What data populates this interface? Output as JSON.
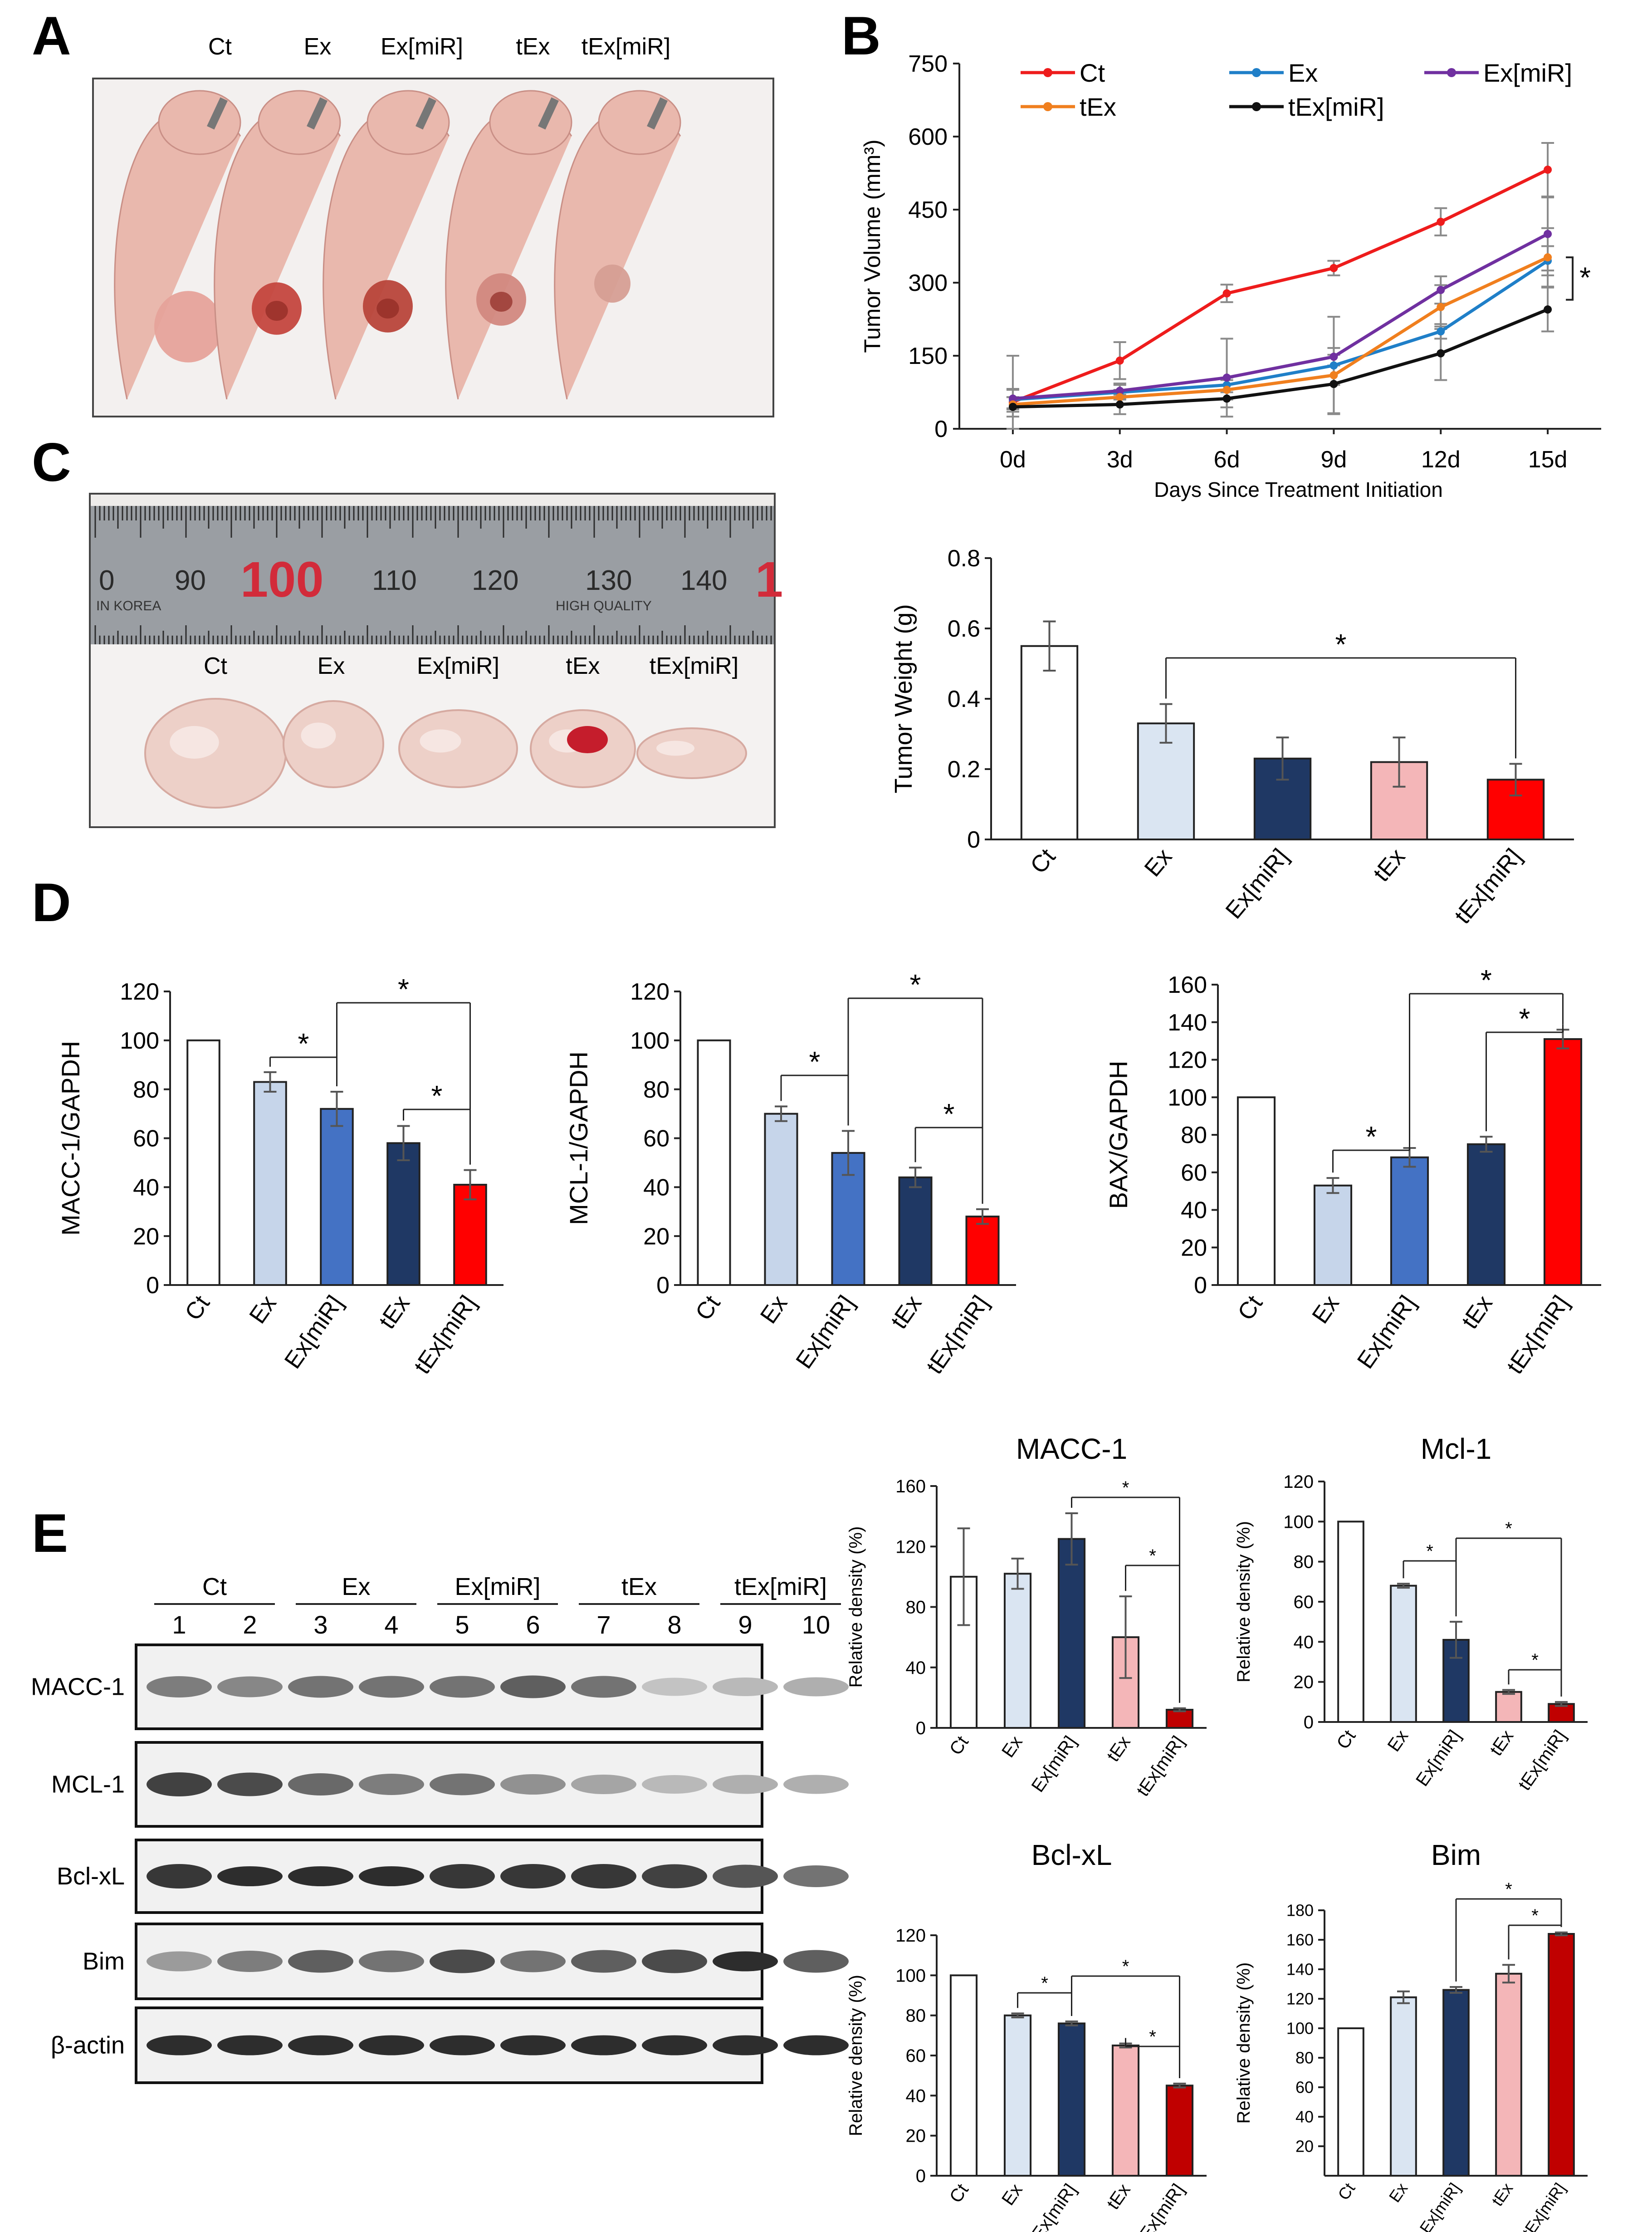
{
  "panel_letters": {
    "a": "A",
    "b": "B",
    "c": "C",
    "d": "D",
    "e": "E"
  },
  "panel_a": {
    "labels": [
      "Ct",
      "Ex",
      "Ex[miR]",
      "tEx",
      "tEx[miR]"
    ],
    "skin_color": "#e9b8ad",
    "tumor_colors": [
      "#e6a29a",
      "#c4463e",
      "#b8453a",
      "#d2887f",
      "#d69e93"
    ]
  },
  "panel_c": {
    "ruler_numbers": [
      "0",
      "90",
      "100",
      "110",
      "120",
      "130",
      "140",
      "1"
    ],
    "ruler_texts": [
      "IN KOREA",
      "HIGH QUALITY"
    ],
    "labels": [
      "Ct",
      "Ex",
      "Ex[miR]",
      "tEx",
      "tEx[miR]"
    ],
    "tumor_color": "#edd0c8"
  },
  "panel_d_labels": {
    "significance": "*"
  },
  "chart_data": [
    {
      "id": "B",
      "type": "line",
      "title": "",
      "xlabel": "Days Since Treatment Initiation",
      "ylabel": "Tumor Volume (mm³)",
      "categories": [
        "0d",
        "3d",
        "6d",
        "9d",
        "12d",
        "15d"
      ],
      "yticks": [
        "0",
        "150",
        "300",
        "450",
        "600",
        "750"
      ],
      "ylim": [
        0,
        750
      ],
      "series": [
        {
          "name": "Ct",
          "color": "#ee1c1c",
          "values": [
            55,
            140,
            278,
            330,
            425,
            532
          ],
          "err": [
            95,
            38,
            18,
            15,
            28,
            55
          ]
        },
        {
          "name": "Ex",
          "color": "#1f7fc8",
          "values": [
            60,
            75,
            90,
            130,
            200,
            345
          ],
          "err": [
            20,
            15,
            15,
            100,
            15,
            30
          ]
        },
        {
          "name": "Ex[miR]",
          "color": "#7030a0",
          "values": [
            62,
            78,
            105,
            148,
            285,
            400
          ],
          "err": [
            20,
            15,
            80,
            18,
            28,
            75
          ]
        },
        {
          "name": "tEx",
          "color": "#f07f1e",
          "values": [
            50,
            65,
            80,
            110,
            250,
            352
          ],
          "err": [
            15,
            15,
            20,
            20,
            45,
            60
          ]
        },
        {
          "name": "tEx[miR]",
          "color": "#111111",
          "values": [
            45,
            50,
            62,
            92,
            155,
            245
          ],
          "err": [
            20,
            20,
            18,
            60,
            55,
            45
          ]
        }
      ],
      "significance": "*"
    },
    {
      "id": "C",
      "type": "bar",
      "ylabel": "Tumor Weight (g)",
      "categories": [
        "Ct",
        "Ex",
        "Ex[miR]",
        "tEx",
        "tEx[miR]"
      ],
      "values": [
        0.55,
        0.33,
        0.23,
        0.22,
        0.17
      ],
      "errors": [
        0.07,
        0.055,
        0.06,
        0.07,
        0.045
      ],
      "colors": [
        "#ffffff",
        "#dae5f2",
        "#1f3864",
        "#f4b6b8",
        "#ff0000"
      ],
      "yticks": [
        "0",
        "0.2",
        "0.4",
        "0.6",
        "0.8"
      ],
      "ylim": [
        0,
        0.8
      ],
      "significance": [
        {
          "from": 1,
          "to": 4,
          "label": "*"
        }
      ]
    },
    {
      "id": "D1",
      "type": "bar",
      "ylabel": "MACC-1/GAPDH",
      "categories": [
        "Ct",
        "Ex",
        "Ex[miR]",
        "tEx",
        "tEx[miR]"
      ],
      "values": [
        100,
        83,
        72,
        58,
        41
      ],
      "errors": [
        0,
        4,
        7,
        7,
        6
      ],
      "colors": [
        "#ffffff",
        "#c6d5ea",
        "#4472c4",
        "#1f3864",
        "#ff0000"
      ],
      "yticks": [
        "0",
        "20",
        "40",
        "60",
        "80",
        "100",
        "120"
      ],
      "ylim": [
        0,
        120
      ],
      "significance": [
        {
          "from": 1,
          "to": 2,
          "label": "*"
        },
        {
          "from": 2,
          "to": 4,
          "label": "*"
        },
        {
          "from": 3,
          "to": 4,
          "label": "*"
        }
      ]
    },
    {
      "id": "D2",
      "type": "bar",
      "ylabel": "MCL-1/GAPDH",
      "categories": [
        "Ct",
        "Ex",
        "Ex[miR]",
        "tEx",
        "tEx[miR]"
      ],
      "values": [
        100,
        70,
        54,
        44,
        28
      ],
      "errors": [
        0,
        3,
        9,
        4,
        3
      ],
      "colors": [
        "#ffffff",
        "#c6d5ea",
        "#4472c4",
        "#1f3864",
        "#ff0000"
      ],
      "yticks": [
        "0",
        "20",
        "40",
        "60",
        "80",
        "100",
        "120"
      ],
      "ylim": [
        0,
        120
      ],
      "significance": [
        {
          "from": 1,
          "to": 2,
          "label": "*"
        },
        {
          "from": 2,
          "to": 4,
          "label": "*"
        },
        {
          "from": 3,
          "to": 4,
          "label": "*"
        }
      ]
    },
    {
      "id": "D3",
      "type": "bar",
      "ylabel": "BAX/GAPDH",
      "categories": [
        "Ct",
        "Ex",
        "Ex[miR]",
        "tEx",
        "tEx[miR]"
      ],
      "values": [
        100,
        53,
        68,
        75,
        131
      ],
      "errors": [
        0,
        4,
        5,
        4,
        5
      ],
      "colors": [
        "#ffffff",
        "#c6d5ea",
        "#4472c4",
        "#1f3864",
        "#ff0000"
      ],
      "yticks": [
        "0",
        "20",
        "40",
        "60",
        "80",
        "100",
        "120",
        "140",
        "160"
      ],
      "ylim": [
        0,
        160
      ],
      "significance": [
        {
          "from": 1,
          "to": 2,
          "label": "*"
        },
        {
          "from": 2,
          "to": 4,
          "label": "*"
        },
        {
          "from": 3,
          "to": 4,
          "label": "*"
        }
      ]
    },
    {
      "id": "E1",
      "type": "bar",
      "title": "MACC-1",
      "ylabel": "Relative density (%)",
      "categories": [
        "Ct",
        "Ex",
        "Ex[miR]",
        "tEx",
        "tEx[miR]"
      ],
      "values": [
        100,
        102,
        125,
        60,
        12
      ],
      "errors": [
        32,
        10,
        17,
        27,
        1
      ],
      "colors": [
        "#ffffff",
        "#dae5f2",
        "#1f3864",
        "#f4b6b8",
        "#c00000"
      ],
      "yticks": [
        "0",
        "40",
        "80",
        "120",
        "160"
      ],
      "ylim": [
        0,
        160
      ],
      "significance": [
        {
          "from": 2,
          "to": 4,
          "label": "*"
        },
        {
          "from": 3,
          "to": 4,
          "label": "*"
        }
      ]
    },
    {
      "id": "E2",
      "type": "bar",
      "title": "Mcl-1",
      "ylabel": "Relative density (%)",
      "categories": [
        "Ct",
        "Ex",
        "Ex[miR]",
        "tEx",
        "tEx[miR]"
      ],
      "values": [
        100,
        68,
        41,
        15,
        9
      ],
      "errors": [
        0,
        1,
        9,
        1,
        1
      ],
      "colors": [
        "#ffffff",
        "#dae5f2",
        "#1f3864",
        "#f4b6b8",
        "#c00000"
      ],
      "yticks": [
        "0",
        "20",
        "40",
        "60",
        "80",
        "100",
        "120"
      ],
      "ylim": [
        0,
        120
      ],
      "significance": [
        {
          "from": 1,
          "to": 2,
          "label": "*"
        },
        {
          "from": 2,
          "to": 4,
          "label": "*"
        },
        {
          "from": 3,
          "to": 4,
          "label": "*"
        }
      ]
    },
    {
      "id": "E3",
      "type": "bar",
      "title": "Bcl-xL",
      "ylabel": "Relative density (%)",
      "categories": [
        "Ct",
        "Ex",
        "Ex[miR]",
        "tEx",
        "tEx[miR]"
      ],
      "values": [
        100,
        80,
        76,
        65,
        45
      ],
      "errors": [
        0,
        1,
        1,
        1,
        1
      ],
      "colors": [
        "#ffffff",
        "#dae5f2",
        "#1f3864",
        "#f4b6b8",
        "#c00000"
      ],
      "yticks": [
        "0",
        "20",
        "40",
        "60",
        "80",
        "100",
        "120"
      ],
      "ylim": [
        0,
        120
      ],
      "significance": [
        {
          "from": 1,
          "to": 2,
          "label": "*"
        },
        {
          "from": 2,
          "to": 4,
          "label": "*"
        },
        {
          "from": 3,
          "to": 4,
          "label": "*"
        }
      ]
    },
    {
      "id": "E4",
      "type": "bar",
      "title": "Bim",
      "ylabel": "Relative density (%)",
      "categories": [
        "Ct",
        "Ex",
        "Ex[miR]",
        "tEx",
        "tEx[miR]"
      ],
      "values": [
        100,
        121,
        126,
        137,
        164
      ],
      "errors": [
        0,
        4,
        2,
        6,
        1
      ],
      "colors": [
        "#ffffff",
        "#dae5f2",
        "#1f3864",
        "#f4b6b8",
        "#c00000"
      ],
      "yticks": [
        "20",
        "40",
        "60",
        "80",
        "100",
        "120",
        "140",
        "160",
        "180"
      ],
      "ylim": [
        0,
        180
      ],
      "significance": [
        {
          "from": 2,
          "to": 4,
          "label": "*"
        },
        {
          "from": 3,
          "to": 4,
          "label": "*"
        }
      ]
    }
  ],
  "panel_e_blot": {
    "groups": [
      "Ct",
      "Ex",
      "Ex[miR]",
      "tEx",
      "tEx[miR]"
    ],
    "lanes": [
      "1",
      "2",
      "3",
      "4",
      "5",
      "6",
      "7",
      "8",
      "9",
      "10"
    ],
    "rows": [
      {
        "label": "MACC-1",
        "intensity": [
          0.55,
          0.5,
          0.6,
          0.6,
          0.6,
          0.7,
          0.6,
          0.2,
          0.25,
          0.3
        ]
      },
      {
        "label": "MCL-1",
        "intensity": [
          0.85,
          0.8,
          0.65,
          0.55,
          0.6,
          0.45,
          0.35,
          0.25,
          0.3,
          0.3
        ]
      },
      {
        "label": "Bcl-xL",
        "intensity": [
          0.9,
          0.95,
          0.95,
          0.95,
          0.9,
          0.9,
          0.9,
          0.85,
          0.75,
          0.6
        ]
      },
      {
        "label": "Bim",
        "intensity": [
          0.4,
          0.55,
          0.7,
          0.6,
          0.8,
          0.6,
          0.7,
          0.8,
          0.95,
          0.7
        ]
      },
      {
        "label": "β-actin",
        "intensity": [
          0.95,
          0.95,
          0.95,
          0.95,
          0.95,
          0.95,
          0.95,
          0.95,
          0.95,
          0.95
        ]
      }
    ]
  }
}
